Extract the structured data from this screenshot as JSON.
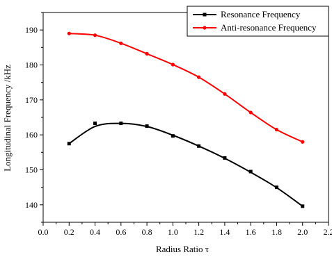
{
  "chart_data": {
    "type": "line",
    "xlabel": "Radius Ratio τ",
    "ylabel": "Longitudinal Frequency /kHz",
    "xlim": [
      0.0,
      2.2
    ],
    "ylim": [
      135,
      195
    ],
    "x_ticks": [
      0.0,
      0.2,
      0.4,
      0.6,
      0.8,
      1.0,
      1.2,
      1.4,
      1.6,
      1.8,
      2.0,
      2.2
    ],
    "x_tick_labels": [
      "0.0",
      "0.2",
      "0.4",
      "0.6",
      "0.8",
      "1.0",
      "1.2",
      "1.4",
      "1.6",
      "1.8",
      "2.0",
      "2.2"
    ],
    "y_ticks": [
      140,
      150,
      160,
      170,
      180,
      190
    ],
    "y_tick_labels": [
      "140",
      "150",
      "160",
      "170",
      "180",
      "190"
    ],
    "grid": false,
    "legend_position": "top-right",
    "series": [
      {
        "name": "Resonance Frequency",
        "color": "#000000",
        "marker": "square",
        "x": [
          0.2,
          0.4,
          0.6,
          0.8,
          1.0,
          1.2,
          1.4,
          1.6,
          1.8,
          2.0
        ],
        "y": [
          157.5,
          163.3,
          163.3,
          162.5,
          159.7,
          156.8,
          153.4,
          149.5,
          145.0,
          139.6
        ],
        "curve_y": [
          157.5,
          162.4,
          163.3,
          162.4,
          159.9,
          156.8,
          153.3,
          149.3,
          144.9,
          139.6
        ]
      },
      {
        "name": "Anti-resonance Frequency",
        "color": "#ff0000",
        "marker": "circle",
        "x": [
          0.2,
          0.4,
          0.6,
          0.8,
          1.0,
          1.2,
          1.4,
          1.6,
          1.8,
          2.0
        ],
        "y": [
          189.0,
          188.5,
          186.2,
          183.2,
          180.1,
          176.5,
          171.7,
          166.4,
          161.5,
          158.0
        ],
        "curve_y": [
          189.0,
          188.5,
          186.2,
          183.2,
          180.1,
          176.5,
          171.7,
          166.4,
          161.5,
          158.0
        ]
      }
    ]
  }
}
